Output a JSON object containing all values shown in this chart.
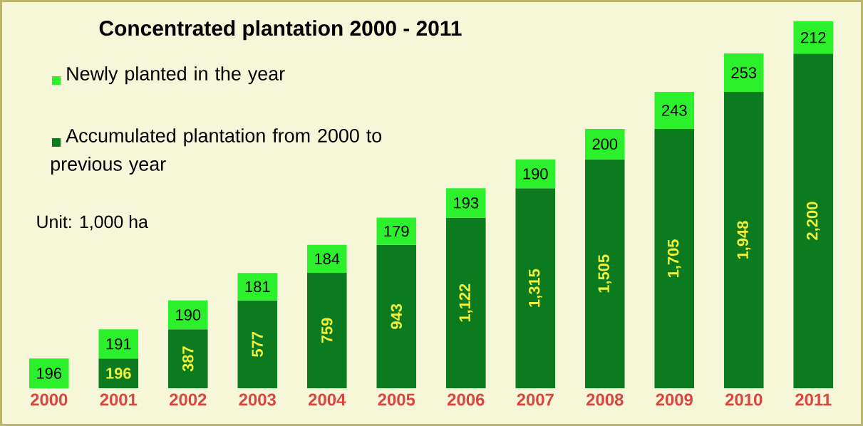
{
  "chart_data": {
    "type": "bar",
    "stacked": true,
    "title": "Concentrated plantation 2000 - 2011",
    "categories": [
      "2000",
      "2001",
      "2002",
      "2003",
      "2004",
      "2005",
      "2006",
      "2007",
      "2008",
      "2009",
      "2010",
      "2011"
    ],
    "series": [
      {
        "name": "Accumulated plantation from 2000 to previous year",
        "color": "#0c7a1f",
        "values": [
          null,
          196,
          387,
          577,
          759,
          943,
          1122,
          1315,
          1505,
          1705,
          1948,
          2200
        ],
        "value_labels": [
          null,
          "196",
          "387",
          "577",
          "759",
          "943",
          "1,122",
          "1,315",
          "1,505",
          "1,705",
          "1,948",
          "2,200"
        ]
      },
      {
        "name": "Newly planted in the year",
        "color": "#2cf02c",
        "values": [
          196,
          191,
          190,
          181,
          184,
          179,
          193,
          190,
          200,
          243,
          253,
          212
        ],
        "value_labels": [
          "196",
          "191",
          "190",
          "181",
          "184",
          "179",
          "193",
          "190",
          "200",
          "243",
          "253",
          "212"
        ]
      }
    ],
    "legend": "top left",
    "grid": false,
    "annotations": [
      "Unit:  1,000 ha"
    ]
  }
}
